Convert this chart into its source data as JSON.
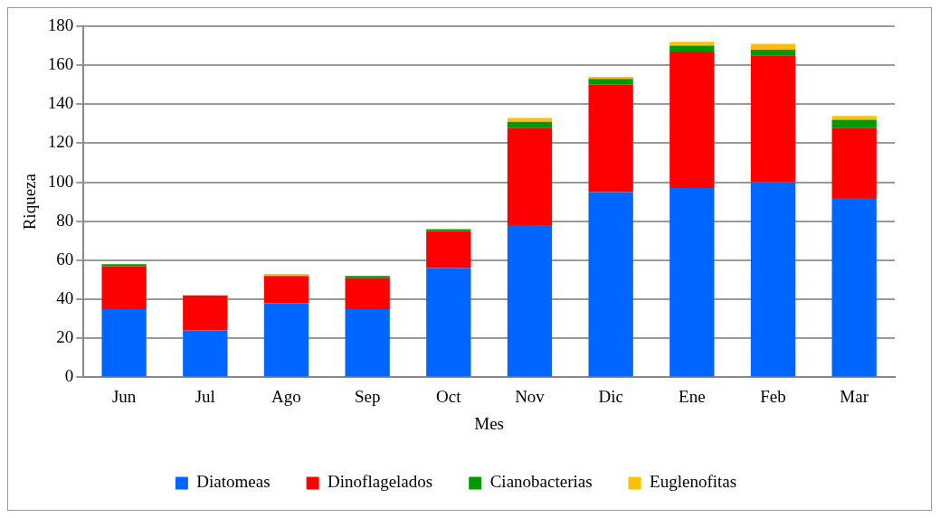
{
  "chart_data": {
    "type": "bar",
    "stacked": true,
    "xlabel": "Mes",
    "ylabel": "Riqueza",
    "categories": [
      "Jun",
      "Jul",
      "Ago",
      "Sep",
      "Oct",
      "Nov",
      "Dic",
      "Ene",
      "Feb",
      "Mar"
    ],
    "series": [
      {
        "name": "Diatomeas",
        "color": "#0066ff",
        "values": [
          35,
          24,
          38,
          35,
          56,
          78,
          95,
          97,
          100,
          92
        ]
      },
      {
        "name": "Dinoflagelados",
        "color": "#ff0000",
        "values": [
          22,
          18,
          14,
          16,
          19,
          50,
          55,
          70,
          65,
          36
        ]
      },
      {
        "name": "Cianobacterias",
        "color": "#009900",
        "values": [
          1,
          0,
          0,
          1,
          1,
          3,
          3,
          3,
          3,
          4
        ]
      },
      {
        "name": "Euglenofitas",
        "color": "#ffc000",
        "values": [
          0,
          0,
          1,
          0,
          0,
          2,
          1,
          2,
          3,
          2
        ]
      }
    ],
    "ylim": [
      0,
      180
    ],
    "yticks": [
      0,
      20,
      40,
      60,
      80,
      100,
      120,
      140,
      160,
      180
    ],
    "grid": "y",
    "legend": "bottom"
  }
}
